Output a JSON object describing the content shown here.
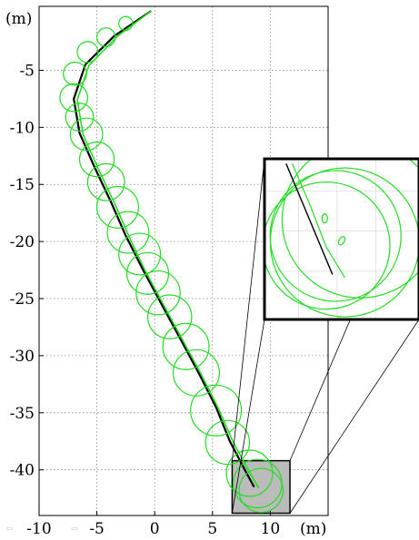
{
  "chart_data": {
    "type": "line",
    "title": "",
    "xlabel": "(m)",
    "ylabel": "(m)",
    "xlim": [
      -10,
      15
    ],
    "ylim": [
      -44,
      0.6
    ],
    "grid": true,
    "xticks": [
      "-10",
      "-5",
      "0",
      "5",
      "10"
    ],
    "xtick_values": [
      -10,
      -5,
      0,
      5,
      10
    ],
    "yticks": [
      "-5",
      "-10",
      "-15",
      "-20",
      "-25",
      "-30",
      "-35",
      "-40"
    ],
    "ytick_values": [
      -5,
      -10,
      -15,
      -20,
      -25,
      -30,
      -35,
      -40
    ],
    "series": [
      {
        "kind": "path",
        "color": "#000000",
        "points": [
          [
            -0.3,
            0.2
          ],
          [
            -3.5,
            -2.0
          ],
          [
            -6.0,
            -4.5
          ],
          [
            -7.0,
            -7.5
          ],
          [
            -6.5,
            -10.5
          ],
          [
            -5.2,
            -13.5
          ],
          [
            -3.8,
            -16.5
          ],
          [
            -2.5,
            -19.5
          ],
          [
            -1.0,
            -22.5
          ],
          [
            0.6,
            -25.5
          ],
          [
            2.2,
            -28.5
          ],
          [
            3.8,
            -31.5
          ],
          [
            5.3,
            -34.5
          ],
          [
            6.5,
            -37.5
          ],
          [
            7.8,
            -40.0
          ],
          [
            8.6,
            -41.5
          ]
        ]
      },
      {
        "kind": "path",
        "color": "#22dd22",
        "points": [
          [
            -0.3,
            0.2
          ],
          [
            -3.2,
            -2.0
          ],
          [
            -5.7,
            -4.6
          ],
          [
            -6.7,
            -7.6
          ],
          [
            -6.2,
            -10.6
          ],
          [
            -4.9,
            -13.6
          ],
          [
            -3.5,
            -16.6
          ],
          [
            -2.2,
            -19.6
          ],
          [
            -0.8,
            -22.6
          ],
          [
            0.8,
            -25.6
          ],
          [
            2.4,
            -28.6
          ],
          [
            4.0,
            -31.6
          ],
          [
            5.5,
            -34.6
          ],
          [
            6.8,
            -37.6
          ],
          [
            8.2,
            -40.2
          ],
          [
            9.0,
            -41.6
          ]
        ]
      },
      {
        "kind": "circles",
        "color": "#22dd22",
        "circles": [
          [
            -2.5,
            -0.9,
            0.6
          ],
          [
            -4.2,
            -2.1,
            0.8
          ],
          [
            -5.8,
            -3.4,
            0.9
          ],
          [
            -6.9,
            -5.3,
            1.0
          ],
          [
            -7.0,
            -7.4,
            1.2
          ],
          [
            -6.5,
            -9.1,
            1.2
          ],
          [
            -5.9,
            -10.6,
            1.4
          ],
          [
            -5.0,
            -12.8,
            1.5
          ],
          [
            -4.2,
            -14.8,
            1.6
          ],
          [
            -3.2,
            -17.0,
            1.8
          ],
          [
            -2.3,
            -19.2,
            1.8
          ],
          [
            -1.3,
            -21.1,
            1.8
          ],
          [
            -0.6,
            -22.8,
            1.8
          ],
          [
            0.3,
            -24.5,
            1.9
          ],
          [
            1.3,
            -26.6,
            1.9
          ],
          [
            2.7,
            -29.2,
            2.0
          ],
          [
            3.6,
            -31.5,
            2.0
          ],
          [
            5.3,
            -34.8,
            2.2
          ],
          [
            6.3,
            -37.6,
            1.9
          ],
          [
            8.2,
            -40.3,
            2.0
          ],
          [
            8.9,
            -41.2,
            2.1
          ],
          [
            9.2,
            -41.8,
            1.9
          ]
        ]
      }
    ],
    "highlight_box": {
      "x": [
        6.7,
        11.7
      ],
      "y": [
        -43.8,
        -39.2
      ],
      "fill": "#bbbbbb"
    },
    "inset": {
      "description_visible": false,
      "black_line": [
        [
          0.14,
          0.03
        ],
        [
          0.44,
          0.72
        ]
      ],
      "green_line": [
        [
          0.18,
          0.03
        ],
        [
          0.52,
          0.74
        ]
      ]
    }
  },
  "nav": {
    "back_glyph": "⇦",
    "fwd_glyph": "⇨"
  }
}
